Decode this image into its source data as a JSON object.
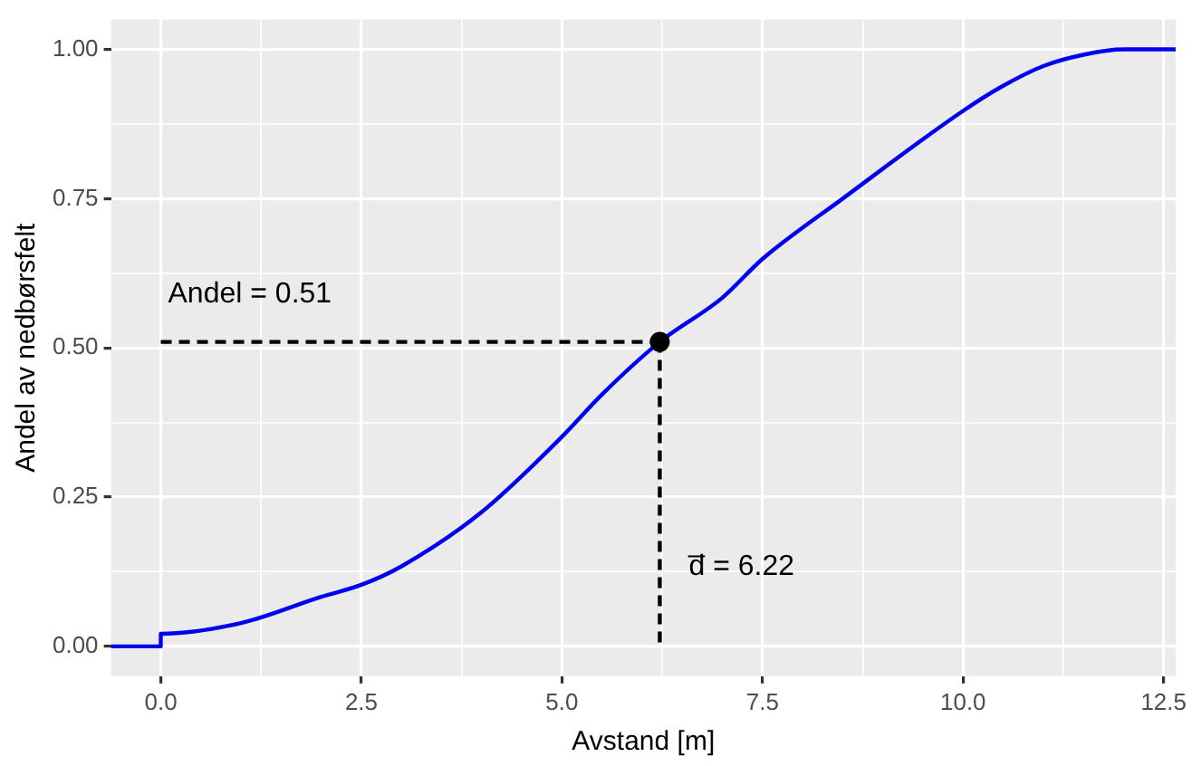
{
  "chart_data": {
    "type": "line",
    "xlabel": "Avstand [m]",
    "ylabel": "Andel av nedbørsfelt",
    "xlim": [
      -0.62,
      12.65
    ],
    "ylim": [
      -0.05,
      1.05
    ],
    "xticks": [
      {
        "value": 0,
        "label": "0.0"
      },
      {
        "value": 1.25,
        "label": null
      },
      {
        "value": 2.5,
        "label": "2.5"
      },
      {
        "value": 3.75,
        "label": null
      },
      {
        "value": 5,
        "label": "5.0"
      },
      {
        "value": 6.25,
        "label": null
      },
      {
        "value": 7.5,
        "label": "7.5"
      },
      {
        "value": 8.75,
        "label": null
      },
      {
        "value": 10,
        "label": "10.0"
      },
      {
        "value": 11.25,
        "label": null
      },
      {
        "value": 12.5,
        "label": "12.5"
      }
    ],
    "yticks": [
      {
        "value": 0,
        "label": "0.00"
      },
      {
        "value": 0.125,
        "label": null
      },
      {
        "value": 0.25,
        "label": "0.25"
      },
      {
        "value": 0.375,
        "label": null
      },
      {
        "value": 0.5,
        "label": "0.50"
      },
      {
        "value": 0.625,
        "label": null
      },
      {
        "value": 0.75,
        "label": "0.75"
      },
      {
        "value": 0.875,
        "label": null
      },
      {
        "value": 1,
        "label": "1.00"
      }
    ],
    "grid": true,
    "marker": "none",
    "series": [
      {
        "type": "line",
        "color": "#0000ee",
        "line_style": "solid",
        "x": [
          -0.62,
          0,
          0,
          1,
          2,
          2.5,
          3,
          4,
          5,
          5.5,
          6.22,
          7,
          7.5,
          8.5,
          10,
          10.5,
          11,
          11.5,
          12,
          12.65
        ],
        "values": [
          0,
          0,
          0.021,
          0.039,
          0.083,
          0.103,
          0.134,
          0.225,
          0.351,
          0.422,
          0.51,
          0.584,
          0.649,
          0.75,
          0.897,
          0.939,
          0.972,
          0.991,
          1,
          1
        ]
      },
      {
        "type": "line",
        "color": "#000000",
        "line_style": "dashed",
        "x": [
          0,
          6.22
        ],
        "values": [
          0.51,
          0.51
        ]
      },
      {
        "type": "line",
        "color": "#000000",
        "line_style": "dashed",
        "x": [
          6.22,
          6.22
        ],
        "values": [
          0.51,
          0
        ]
      },
      {
        "type": "scatter",
        "color": "#000000",
        "marker": "circle",
        "x": [
          6.22
        ],
        "values": [
          0.51
        ]
      }
    ],
    "annotations": [
      "Andel = 0.51",
      "d̅ = 6.22"
    ]
  }
}
